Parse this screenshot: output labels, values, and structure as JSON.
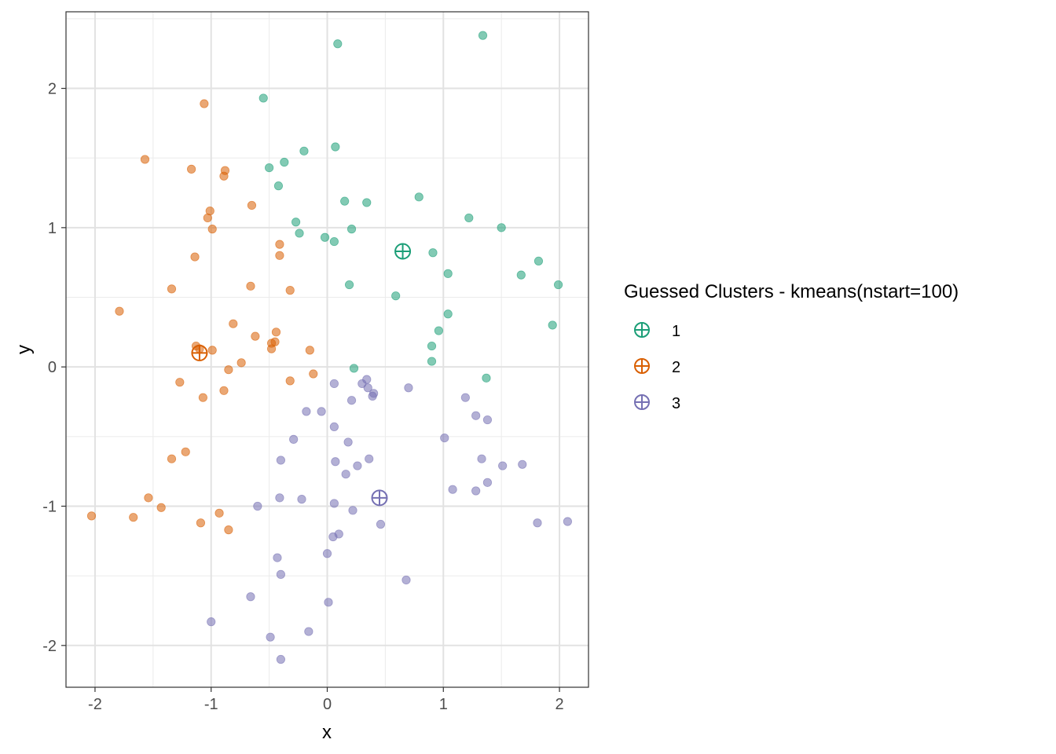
{
  "chart_data": {
    "type": "scatter",
    "xlabel": "x",
    "ylabel": "y",
    "xlim": [
      -2.25,
      2.25
    ],
    "ylim": [
      -2.3,
      2.55
    ],
    "x_ticks": [
      -2,
      -1,
      0,
      1,
      2
    ],
    "y_ticks": [
      -2,
      -1,
      0,
      1,
      2
    ],
    "x_tick_labels": [
      "-2",
      "-1",
      "0",
      "1",
      "2"
    ],
    "y_tick_labels": [
      "-2",
      "-1",
      "0",
      "1",
      "2"
    ],
    "grid": true,
    "legend": {
      "title": "Guessed Clusters - kmeans(nstart=100)",
      "placement": "right"
    },
    "series": [
      {
        "name": "1",
        "color": "#1b9e77",
        "centroid": [
          0.65,
          0.83
        ],
        "points": [
          [
            0.09,
            2.32
          ],
          [
            1.34,
            2.38
          ],
          [
            -0.55,
            1.93
          ],
          [
            0.07,
            1.58
          ],
          [
            -0.2,
            1.55
          ],
          [
            -0.37,
            1.47
          ],
          [
            -0.5,
            1.43
          ],
          [
            -0.42,
            1.3
          ],
          [
            0.79,
            1.22
          ],
          [
            0.15,
            1.19
          ],
          [
            0.34,
            1.18
          ],
          [
            1.22,
            1.07
          ],
          [
            -0.27,
            1.04
          ],
          [
            1.5,
            1.0
          ],
          [
            0.21,
            0.99
          ],
          [
            -0.24,
            0.96
          ],
          [
            -0.02,
            0.93
          ],
          [
            0.06,
            0.9
          ],
          [
            0.91,
            0.82
          ],
          [
            1.82,
            0.76
          ],
          [
            1.04,
            0.67
          ],
          [
            1.67,
            0.66
          ],
          [
            1.99,
            0.59
          ],
          [
            0.19,
            0.59
          ],
          [
            0.59,
            0.51
          ],
          [
            1.04,
            0.38
          ],
          [
            1.94,
            0.3
          ],
          [
            0.96,
            0.26
          ],
          [
            0.9,
            0.15
          ],
          [
            0.9,
            0.04
          ],
          [
            0.23,
            -0.01
          ],
          [
            1.37,
            -0.08
          ]
        ]
      },
      {
        "name": "2",
        "color": "#d95f02",
        "centroid": [
          -1.1,
          0.1
        ],
        "points": [
          [
            -1.06,
            1.89
          ],
          [
            -1.57,
            1.49
          ],
          [
            -1.17,
            1.42
          ],
          [
            -0.88,
            1.41
          ],
          [
            -0.89,
            1.37
          ],
          [
            -0.65,
            1.16
          ],
          [
            -1.01,
            1.12
          ],
          [
            -1.03,
            1.07
          ],
          [
            -0.99,
            0.99
          ],
          [
            -0.41,
            0.88
          ],
          [
            -1.14,
            0.79
          ],
          [
            -0.41,
            0.8
          ],
          [
            -0.66,
            0.58
          ],
          [
            -1.34,
            0.56
          ],
          [
            -0.32,
            0.55
          ],
          [
            -1.79,
            0.4
          ],
          [
            -0.81,
            0.31
          ],
          [
            -0.44,
            0.25
          ],
          [
            -0.62,
            0.22
          ],
          [
            -0.45,
            0.18
          ],
          [
            -0.48,
            0.17
          ],
          [
            -1.13,
            0.15
          ],
          [
            -1.1,
            0.13
          ],
          [
            -0.48,
            0.13
          ],
          [
            -0.99,
            0.12
          ],
          [
            -0.15,
            0.12
          ],
          [
            -0.74,
            0.03
          ],
          [
            -0.85,
            -0.02
          ],
          [
            -0.12,
            -0.05
          ],
          [
            -1.27,
            -0.11
          ],
          [
            -0.32,
            -0.1
          ],
          [
            -0.89,
            -0.17
          ],
          [
            -1.07,
            -0.22
          ],
          [
            -1.22,
            -0.61
          ],
          [
            -1.34,
            -0.66
          ],
          [
            -1.54,
            -0.94
          ],
          [
            -1.43,
            -1.01
          ],
          [
            -0.93,
            -1.05
          ],
          [
            -2.03,
            -1.07
          ],
          [
            -1.67,
            -1.08
          ],
          [
            -1.09,
            -1.12
          ],
          [
            -0.85,
            -1.17
          ]
        ]
      },
      {
        "name": "3",
        "color": "#7570b3",
        "centroid": [
          0.45,
          -0.94
        ],
        "points": [
          [
            0.34,
            -0.09
          ],
          [
            0.06,
            -0.12
          ],
          [
            0.3,
            -0.12
          ],
          [
            0.7,
            -0.15
          ],
          [
            0.35,
            -0.15
          ],
          [
            0.4,
            -0.19
          ],
          [
            0.39,
            -0.21
          ],
          [
            1.19,
            -0.22
          ],
          [
            0.21,
            -0.24
          ],
          [
            -0.18,
            -0.32
          ],
          [
            -0.05,
            -0.32
          ],
          [
            1.28,
            -0.35
          ],
          [
            1.38,
            -0.38
          ],
          [
            0.06,
            -0.43
          ],
          [
            1.01,
            -0.51
          ],
          [
            -0.29,
            -0.52
          ],
          [
            0.18,
            -0.54
          ],
          [
            0.36,
            -0.66
          ],
          [
            -0.4,
            -0.67
          ],
          [
            0.07,
            -0.68
          ],
          [
            1.33,
            -0.66
          ],
          [
            1.68,
            -0.7
          ],
          [
            0.26,
            -0.71
          ],
          [
            1.51,
            -0.71
          ],
          [
            0.16,
            -0.77
          ],
          [
            1.38,
            -0.83
          ],
          [
            1.08,
            -0.88
          ],
          [
            1.28,
            -0.89
          ],
          [
            -0.41,
            -0.94
          ],
          [
            -0.22,
            -0.95
          ],
          [
            0.06,
            -0.98
          ],
          [
            -0.6,
            -1.0
          ],
          [
            0.22,
            -1.03
          ],
          [
            1.81,
            -1.12
          ],
          [
            2.07,
            -1.11
          ],
          [
            0.46,
            -1.13
          ],
          [
            0.1,
            -1.2
          ],
          [
            0.05,
            -1.22
          ],
          [
            0.0,
            -1.34
          ],
          [
            -0.43,
            -1.37
          ],
          [
            -0.4,
            -1.49
          ],
          [
            0.68,
            -1.53
          ],
          [
            -0.66,
            -1.65
          ],
          [
            0.01,
            -1.69
          ],
          [
            -1.0,
            -1.83
          ],
          [
            -0.16,
            -1.9
          ],
          [
            -0.49,
            -1.94
          ],
          [
            -0.4,
            -2.1
          ]
        ]
      }
    ]
  }
}
